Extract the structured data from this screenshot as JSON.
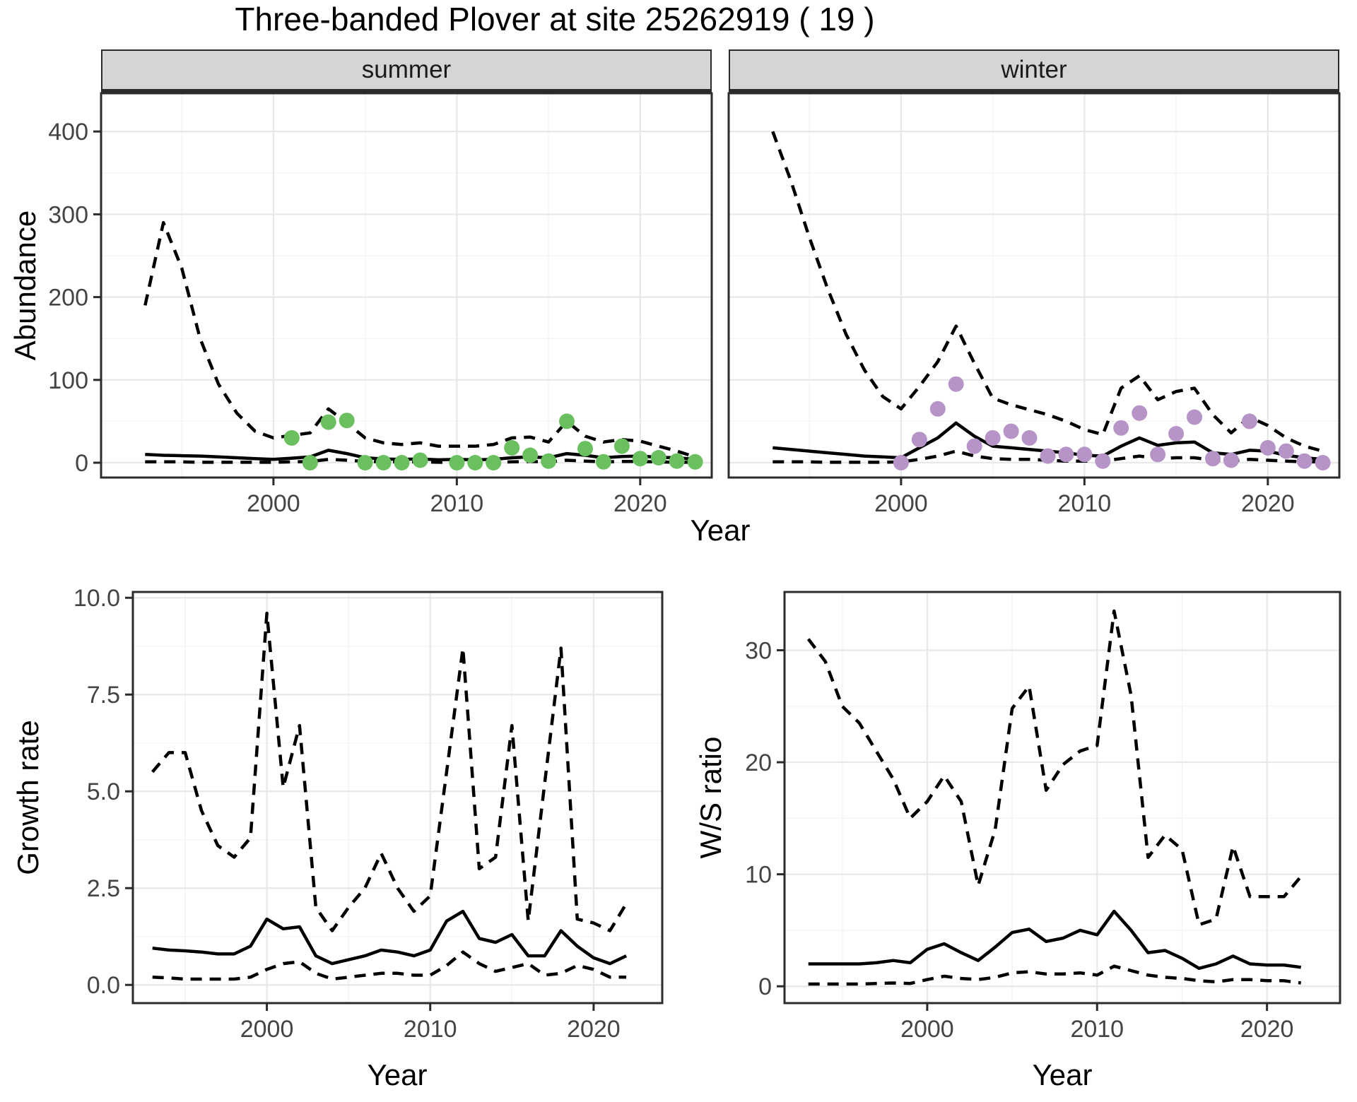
{
  "title": "Three-banded Plover at site 25262919 ( 19 )",
  "colors": {
    "summer_point": "#6abf5e",
    "winter_point": "#b694c8",
    "line": "#000000",
    "grid_major": "#e8e8e8",
    "grid_minor": "#f4f4f4",
    "panel_border": "#2b2b2b",
    "strip_bg": "#d5d5d5",
    "axis_text": "#444444",
    "panel_bg": "#ffffff"
  },
  "chart_data": [
    {
      "id": "summer",
      "type": "line",
      "facet_label": "summer",
      "xlabel": "Year",
      "ylabel": "Abundance",
      "xlim": [
        1990.6,
        2023.9
      ],
      "ylim": [
        -17.9,
        446.2
      ],
      "xticks": {
        "major": [
          2000,
          2010,
          2020
        ],
        "labels": [
          "2000",
          "2010",
          "2020"
        ],
        "minor": [
          1995,
          2005,
          2015
        ]
      },
      "yticks": {
        "major": [
          0,
          100,
          200,
          300,
          400
        ],
        "labels": [
          "0",
          "100",
          "200",
          "300",
          "400"
        ],
        "minor": [
          50,
          150,
          250,
          350
        ]
      },
      "axes": {
        "left": true,
        "bottom": true
      },
      "series": [
        {
          "name": "ci_upper",
          "style": "dashed",
          "x": [
            1993,
            1994,
            1995,
            1996,
            1997,
            1998,
            1999,
            2000,
            2001,
            2002,
            2003,
            2004,
            2005,
            2006,
            2007,
            2008,
            2009,
            2010,
            2011,
            2012,
            2013,
            2014,
            2015,
            2016,
            2017,
            2018,
            2019,
            2020,
            2021,
            2022,
            2023
          ],
          "y": [
            190,
            290,
            235,
            150,
            95,
            60,
            38,
            30,
            33,
            36,
            65,
            48,
            30,
            24,
            22,
            24,
            20,
            20,
            20,
            22,
            30,
            31,
            25,
            50,
            32,
            25,
            28,
            26,
            20,
            14,
            7
          ]
        },
        {
          "name": "median_fit",
          "style": "solid",
          "x": [
            1993,
            1994,
            1995,
            1996,
            1997,
            1998,
            1999,
            2000,
            2001,
            2002,
            2003,
            2004,
            2005,
            2006,
            2007,
            2008,
            2009,
            2010,
            2011,
            2012,
            2013,
            2014,
            2015,
            2016,
            2017,
            2018,
            2019,
            2020,
            2021,
            2022,
            2023
          ],
          "y": [
            10,
            9,
            8.5,
            8,
            7,
            6,
            5,
            4,
            5.5,
            7,
            15,
            11,
            6,
            4.5,
            4,
            4.5,
            3.5,
            4,
            3.5,
            4,
            6,
            7,
            6,
            11,
            9,
            6,
            7.5,
            8,
            6.5,
            6,
            4
          ]
        },
        {
          "name": "ci_lower",
          "style": "dashed",
          "x": [
            1993,
            1994,
            1995,
            1996,
            1997,
            1998,
            1999,
            2000,
            2001,
            2002,
            2003,
            2004,
            2005,
            2006,
            2007,
            2008,
            2009,
            2010,
            2011,
            2012,
            2013,
            2014,
            2015,
            2016,
            2017,
            2018,
            2019,
            2020,
            2021,
            2022,
            2023
          ],
          "y": [
            1,
            1,
            1,
            0.5,
            0.5,
            0.5,
            0.5,
            0.5,
            1,
            1.5,
            4,
            3,
            1.5,
            1,
            1,
            1,
            0.5,
            0.5,
            0.5,
            0.5,
            1,
            1.5,
            1,
            3,
            2,
            1,
            1.5,
            1.5,
            1,
            0.5,
            0.5
          ]
        }
      ],
      "points": {
        "color_key": "summer_point",
        "x": [
          2001,
          2002,
          2003,
          2004,
          2005,
          2006,
          2007,
          2008,
          2010,
          2011,
          2012,
          2013,
          2014,
          2015,
          2016,
          2017,
          2018,
          2019,
          2020,
          2021,
          2022,
          2023
        ],
        "y": [
          30,
          0,
          49,
          51,
          0,
          0,
          0,
          3,
          0,
          0,
          0,
          18,
          9,
          2,
          50,
          17,
          1,
          20,
          5,
          6,
          2,
          1
        ]
      }
    },
    {
      "id": "winter",
      "type": "line",
      "facet_label": "winter",
      "xlabel": "Year",
      "ylabel": "Abundance",
      "xlim": [
        1990.6,
        2023.9
      ],
      "ylim": [
        -17.9,
        446.2
      ],
      "xticks": {
        "major": [
          2000,
          2010,
          2020
        ],
        "labels": [
          "2000",
          "2010",
          "2020"
        ],
        "minor": [
          1995,
          2005,
          2015
        ]
      },
      "yticks": {
        "major": [
          0,
          100,
          200,
          300,
          400
        ],
        "labels": [
          "0",
          "100",
          "200",
          "300",
          "400"
        ],
        "minor": [
          50,
          150,
          250,
          350
        ]
      },
      "axes": {
        "left": false,
        "bottom": true
      },
      "series": [
        {
          "name": "ci_upper",
          "style": "dashed",
          "x": [
            1993,
            1994,
            1995,
            1996,
            1997,
            1998,
            1999,
            2000,
            2001,
            2002,
            2003,
            2004,
            2005,
            2006,
            2007,
            2008,
            2009,
            2010,
            2011,
            2012,
            2013,
            2014,
            2015,
            2016,
            2017,
            2018,
            2019,
            2020,
            2021,
            2022,
            2023
          ],
          "y": [
            400,
            340,
            272,
            210,
            155,
            112,
            80,
            65,
            92,
            122,
            165,
            120,
            78,
            70,
            64,
            58,
            50,
            40,
            34,
            90,
            105,
            76,
            86,
            90,
            58,
            36,
            55,
            45,
            30,
            20,
            14
          ]
        },
        {
          "name": "median_fit",
          "style": "solid",
          "x": [
            1993,
            1994,
            1995,
            1996,
            1997,
            1998,
            1999,
            2000,
            2001,
            2002,
            2003,
            2004,
            2005,
            2006,
            2007,
            2008,
            2009,
            2010,
            2011,
            2012,
            2013,
            2014,
            2015,
            2016,
            2017,
            2018,
            2019,
            2020,
            2021,
            2022,
            2023
          ],
          "y": [
            18,
            16,
            14,
            12,
            10,
            8,
            7,
            6,
            18,
            30,
            48,
            32,
            20,
            18,
            16,
            14,
            12,
            9,
            8,
            20,
            30,
            21,
            24,
            25,
            12,
            10,
            15,
            14,
            9,
            6,
            4
          ]
        },
        {
          "name": "ci_lower",
          "style": "dashed",
          "x": [
            1993,
            1994,
            1995,
            1996,
            1997,
            1998,
            1999,
            2000,
            2001,
            2002,
            2003,
            2004,
            2005,
            2006,
            2007,
            2008,
            2009,
            2010,
            2011,
            2012,
            2013,
            2014,
            2015,
            2016,
            2017,
            2018,
            2019,
            2020,
            2021,
            2022,
            2023
          ],
          "y": [
            1,
            1,
            1,
            0.5,
            0.5,
            0.5,
            0.5,
            1,
            4,
            8,
            14,
            8,
            5,
            4,
            4,
            3,
            2,
            2,
            2,
            5,
            8,
            5,
            6,
            6,
            3,
            2,
            4,
            3,
            2,
            1,
            1
          ]
        }
      ],
      "points": {
        "color_key": "winter_point",
        "x": [
          2000,
          2001,
          2002,
          2003,
          2004,
          2005,
          2006,
          2007,
          2008,
          2009,
          2010,
          2011,
          2012,
          2013,
          2014,
          2015,
          2016,
          2017,
          2018,
          2019,
          2020,
          2021,
          2022,
          2023
        ],
        "y": [
          0,
          28,
          65,
          95,
          20,
          30,
          38,
          30,
          8,
          10,
          10,
          2,
          42,
          60,
          10,
          35,
          55,
          5,
          3,
          50,
          18,
          14,
          2,
          0
        ]
      }
    },
    {
      "id": "growth",
      "type": "line",
      "facet_label": "",
      "xlabel": "Year",
      "ylabel": "Growth rate",
      "xlim": [
        1991.8,
        2024.2
      ],
      "ylim": [
        -0.47,
        10.15
      ],
      "xticks": {
        "major": [
          2000,
          2010,
          2020
        ],
        "labels": [
          "2000",
          "2010",
          "2020"
        ],
        "minor": [
          1995,
          2005,
          2015
        ]
      },
      "yticks": {
        "major": [
          0,
          2.5,
          5,
          7.5,
          10
        ],
        "labels": [
          "0.0",
          "2.5",
          "5.0",
          "7.5",
          "10.0"
        ],
        "minor": [
          1.25,
          3.75,
          6.25,
          8.75
        ]
      },
      "axes": {
        "left": true,
        "bottom": true
      },
      "series": [
        {
          "name": "ci_upper",
          "style": "dashed",
          "x": [
            1993,
            1994,
            1995,
            1996,
            1997,
            1998,
            1999,
            2000,
            2001,
            2002,
            2003,
            2004,
            2005,
            2006,
            2007,
            2008,
            2009,
            2010,
            2011,
            2012,
            2013,
            2014,
            2015,
            2016,
            2017,
            2018,
            2019,
            2020,
            2021,
            2022
          ],
          "y": [
            5.5,
            6.0,
            6.0,
            4.5,
            3.6,
            3.3,
            3.8,
            9.6,
            5.1,
            6.7,
            2.0,
            1.4,
            2.0,
            2.5,
            3.4,
            2.5,
            1.9,
            2.3,
            5.5,
            8.7,
            3.0,
            3.3,
            6.7,
            1.65,
            5.2,
            8.7,
            1.7,
            1.6,
            1.4,
            2.1
          ]
        },
        {
          "name": "median_fit",
          "style": "solid",
          "x": [
            1993,
            1994,
            1995,
            1996,
            1997,
            1998,
            1999,
            2000,
            2001,
            2002,
            2003,
            2004,
            2005,
            2006,
            2007,
            2008,
            2009,
            2010,
            2011,
            2012,
            2013,
            2014,
            2015,
            2016,
            2017,
            2018,
            2019,
            2020,
            2021,
            2022
          ],
          "y": [
            0.95,
            0.9,
            0.88,
            0.85,
            0.8,
            0.8,
            1.0,
            1.7,
            1.45,
            1.5,
            0.75,
            0.55,
            0.65,
            0.75,
            0.9,
            0.85,
            0.75,
            0.9,
            1.65,
            1.9,
            1.2,
            1.1,
            1.3,
            0.75,
            0.75,
            1.4,
            1.0,
            0.7,
            0.55,
            0.75
          ]
        },
        {
          "name": "ci_lower",
          "style": "dashed",
          "x": [
            1993,
            1994,
            1995,
            1996,
            1997,
            1998,
            1999,
            2000,
            2001,
            2002,
            2003,
            2004,
            2005,
            2006,
            2007,
            2008,
            2009,
            2010,
            2011,
            2012,
            2013,
            2014,
            2015,
            2016,
            2017,
            2018,
            2019,
            2020,
            2021,
            2022
          ],
          "y": [
            0.2,
            0.18,
            0.15,
            0.15,
            0.15,
            0.15,
            0.2,
            0.4,
            0.55,
            0.6,
            0.3,
            0.15,
            0.2,
            0.25,
            0.3,
            0.3,
            0.25,
            0.25,
            0.5,
            0.85,
            0.55,
            0.35,
            0.45,
            0.55,
            0.25,
            0.3,
            0.5,
            0.4,
            0.2,
            0.2
          ]
        }
      ],
      "points": null
    },
    {
      "id": "ws",
      "type": "line",
      "facet_label": "",
      "xlabel": "Year",
      "ylabel": "W/S ratio",
      "xlim": [
        1991.6,
        2024.3
      ],
      "ylim": [
        -1.5,
        35.2
      ],
      "xticks": {
        "major": [
          2000,
          2010,
          2020
        ],
        "labels": [
          "2000",
          "2010",
          "2020"
        ],
        "minor": [
          1995,
          2005,
          2015
        ]
      },
      "yticks": {
        "major": [
          0,
          10,
          20,
          30
        ],
        "labels": [
          "0",
          "10",
          "20",
          "30"
        ],
        "minor": [
          5,
          15,
          25
        ]
      },
      "axes": {
        "left": true,
        "bottom": true
      },
      "series": [
        {
          "name": "ci_upper",
          "style": "dashed",
          "x": [
            1993,
            1994,
            1995,
            1996,
            1997,
            1998,
            1999,
            2000,
            2001,
            2002,
            2003,
            2004,
            2005,
            2006,
            2007,
            2008,
            2009,
            2010,
            2011,
            2012,
            2013,
            2014,
            2015,
            2016,
            2017,
            2018,
            2019,
            2020,
            2021,
            2022
          ],
          "y": [
            31,
            29,
            25,
            23.5,
            21,
            18.5,
            15,
            16.5,
            18.8,
            16.5,
            9,
            14,
            24.8,
            26.8,
            17.5,
            19.8,
            21,
            21.5,
            33.5,
            26,
            11.5,
            13.5,
            12.2,
            5.5,
            6,
            12.5,
            8,
            8,
            8,
            9.8
          ]
        },
        {
          "name": "median_fit",
          "style": "solid",
          "x": [
            1993,
            1994,
            1995,
            1996,
            1997,
            1998,
            1999,
            2000,
            2001,
            2002,
            2003,
            2004,
            2005,
            2006,
            2007,
            2008,
            2009,
            2010,
            2011,
            2012,
            2013,
            2014,
            2015,
            2016,
            2017,
            2018,
            2019,
            2020,
            2021,
            2022
          ],
          "y": [
            2.0,
            2.0,
            2.0,
            2.0,
            2.1,
            2.3,
            2.1,
            3.3,
            3.8,
            3.0,
            2.3,
            3.5,
            4.8,
            5.1,
            4.0,
            4.3,
            5.0,
            4.6,
            6.7,
            5.0,
            3.0,
            3.2,
            2.5,
            1.6,
            2.0,
            2.7,
            2.0,
            1.9,
            1.9,
            1.7
          ]
        },
        {
          "name": "ci_lower",
          "style": "dashed",
          "x": [
            1993,
            1994,
            1995,
            1996,
            1997,
            1998,
            1999,
            2000,
            2001,
            2002,
            2003,
            2004,
            2005,
            2006,
            2007,
            2008,
            2009,
            2010,
            2011,
            2012,
            2013,
            2014,
            2015,
            2016,
            2017,
            2018,
            2019,
            2020,
            2021,
            2022
          ],
          "y": [
            0.2,
            0.2,
            0.2,
            0.2,
            0.25,
            0.3,
            0.25,
            0.6,
            0.9,
            0.7,
            0.6,
            0.8,
            1.2,
            1.3,
            1.1,
            1.1,
            1.2,
            1.0,
            1.8,
            1.4,
            1.0,
            0.8,
            0.7,
            0.5,
            0.4,
            0.6,
            0.6,
            0.5,
            0.5,
            0.3
          ]
        }
      ],
      "points": null
    }
  ]
}
